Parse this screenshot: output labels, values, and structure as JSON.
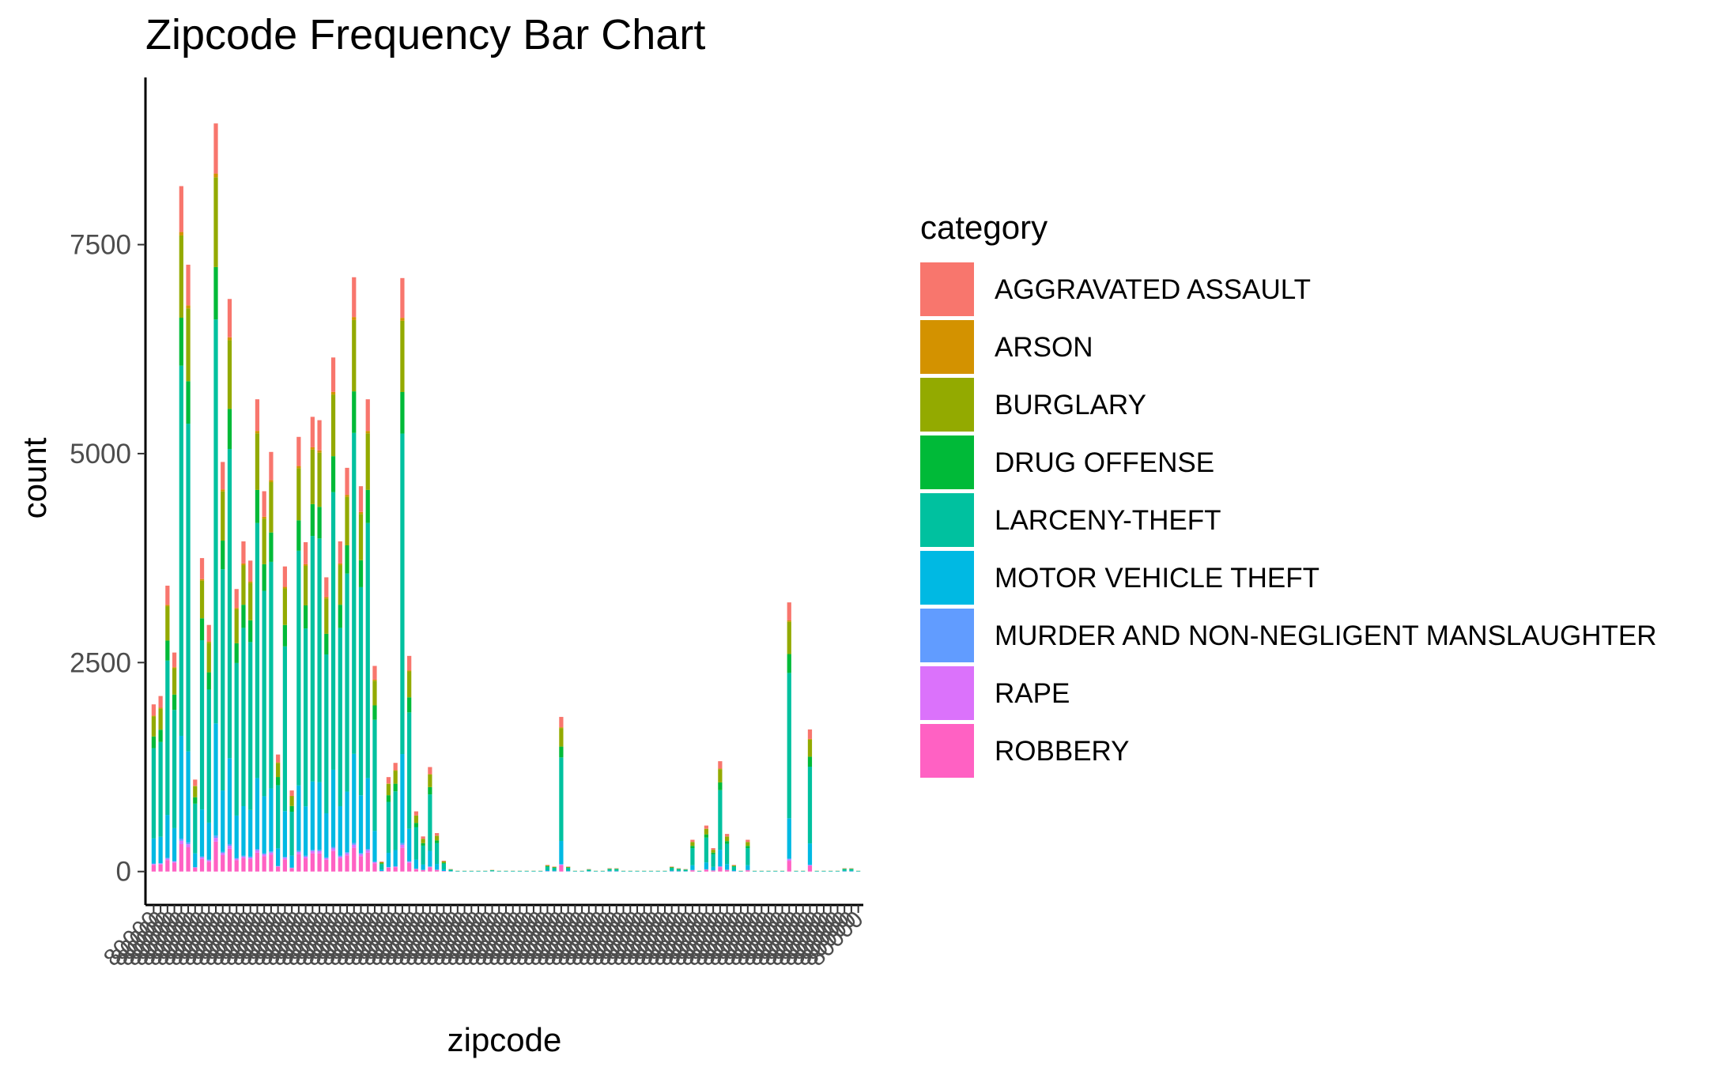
{
  "chart_data": {
    "type": "bar",
    "stacked": true,
    "title": "Zipcode Frequency Bar Chart",
    "xlabel": "zipcode",
    "ylabel": "count",
    "ylim": [
      -400,
      9500
    ],
    "yticks": [
      0,
      2500,
      5000,
      7500
    ],
    "grid": false,
    "legend_position": "right",
    "legend_title": "category",
    "x_tick_label_glyph": "80000",
    "series_order": [
      "ROBBERY",
      "RAPE",
      "MURDER AND NON-NEGLIGENT MANSLAUGHTER",
      "MOTOR VEHICLE THEFT",
      "LARCENY-THEFT",
      "DRUG OFFENSE",
      "BURGLARY",
      "ARSON",
      "AGGRAVATED ASSAULT"
    ],
    "legend": [
      {
        "name": "AGGRAVATED ASSAULT",
        "color": "#F8766D"
      },
      {
        "name": "ARSON",
        "color": "#D39200"
      },
      {
        "name": "BURGLARY",
        "color": "#93AA00"
      },
      {
        "name": "DRUG OFFENSE",
        "color": "#00BA38"
      },
      {
        "name": "LARCENY-THEFT",
        "color": "#00C19F"
      },
      {
        "name": "MOTOR VEHICLE THEFT",
        "color": "#00B9E3"
      },
      {
        "name": "MURDER AND NON-NEGLIGENT MANSLAUGHTER",
        "color": "#619CFF"
      },
      {
        "name": "RAPE",
        "color": "#DB72FB"
      },
      {
        "name": "ROBBERY",
        "color": "#FF61C3"
      }
    ],
    "totals": [
      2000,
      2100,
      3420,
      2620,
      8200,
      7260,
      1100,
      3750,
      2950,
      8950,
      4900,
      6850,
      3380,
      3950,
      3720,
      5650,
      4550,
      5020,
      1400,
      3650,
      970,
      5200,
      3940,
      5440,
      5400,
      3520,
      6150,
      3950,
      4830,
      7110,
      4610,
      5650,
      2460,
      120,
      1130,
      1300,
      7100,
      2580,
      720,
      420,
      1250,
      460,
      130,
      30,
      10,
      10,
      10,
      10,
      10,
      20,
      10,
      10,
      10,
      10,
      10,
      10,
      10,
      80,
      60,
      1850,
      60,
      10,
      10,
      30,
      10,
      10,
      40,
      40,
      10,
      10,
      10,
      10,
      10,
      10,
      10,
      60,
      40,
      30,
      380,
      10,
      550,
      280,
      1320,
      450,
      80,
      10,
      380,
      10,
      10,
      10,
      10,
      10,
      3220,
      10,
      10,
      1700,
      10,
      10,
      10,
      10,
      40,
      40,
      10
    ]
  }
}
